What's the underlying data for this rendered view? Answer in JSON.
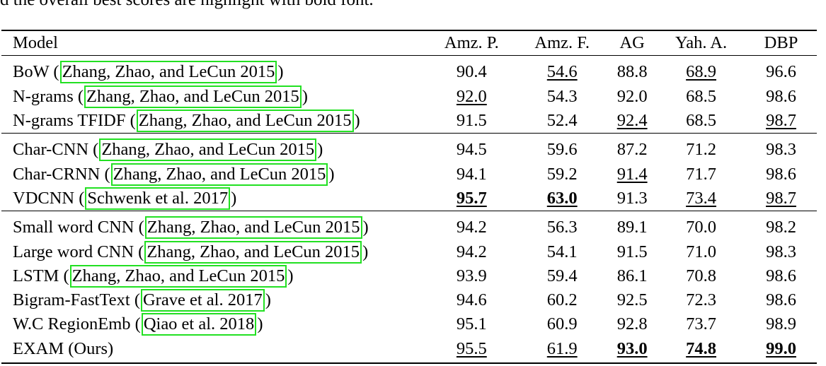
{
  "caption_fragment": "d the overall best scores are highlight with bold font.",
  "headers": [
    "Model",
    "Amz. P.",
    "Amz. F.",
    "AG",
    "Yah. A.",
    "DBP"
  ],
  "groups": [
    [
      {
        "model": "BoW",
        "cite": "Zhang, Zhao, and LeCun 2015",
        "scores": [
          {
            "v": "90.4",
            "u": false,
            "b": false
          },
          {
            "v": "54.6",
            "u": true,
            "b": false
          },
          {
            "v": "88.8",
            "u": false,
            "b": false
          },
          {
            "v": "68.9",
            "u": true,
            "b": false
          },
          {
            "v": "96.6",
            "u": false,
            "b": false
          }
        ]
      },
      {
        "model": "N-grams",
        "cite": "Zhang, Zhao, and LeCun 2015",
        "scores": [
          {
            "v": "92.0",
            "u": true,
            "b": false
          },
          {
            "v": "54.3",
            "u": false,
            "b": false
          },
          {
            "v": "92.0",
            "u": false,
            "b": false
          },
          {
            "v": "68.5",
            "u": false,
            "b": false
          },
          {
            "v": "98.6",
            "u": false,
            "b": false
          }
        ]
      },
      {
        "model": "N-grams TFIDF",
        "cite": "Zhang, Zhao, and LeCun 2015",
        "scores": [
          {
            "v": "91.5",
            "u": false,
            "b": false
          },
          {
            "v": "52.4",
            "u": false,
            "b": false
          },
          {
            "v": "92.4",
            "u": true,
            "b": false
          },
          {
            "v": "68.5",
            "u": false,
            "b": false
          },
          {
            "v": "98.7",
            "u": true,
            "b": false
          }
        ]
      }
    ],
    [
      {
        "model": "Char-CNN",
        "cite": "Zhang, Zhao, and LeCun 2015",
        "scores": [
          {
            "v": "94.5",
            "u": false,
            "b": false
          },
          {
            "v": "59.6",
            "u": false,
            "b": false
          },
          {
            "v": "87.2",
            "u": false,
            "b": false
          },
          {
            "v": "71.2",
            "u": false,
            "b": false
          },
          {
            "v": "98.3",
            "u": false,
            "b": false
          }
        ]
      },
      {
        "model": "Char-CRNN",
        "cite": "Zhang, Zhao, and LeCun 2015",
        "scores": [
          {
            "v": "94.1",
            "u": false,
            "b": false
          },
          {
            "v": "59.2",
            "u": false,
            "b": false
          },
          {
            "v": "91.4",
            "u": true,
            "b": false
          },
          {
            "v": "71.7",
            "u": false,
            "b": false
          },
          {
            "v": "98.6",
            "u": false,
            "b": false
          }
        ]
      },
      {
        "model": "VDCNN",
        "cite": "Schwenk et al. 2017",
        "scores": [
          {
            "v": "95.7",
            "u": true,
            "b": true
          },
          {
            "v": "63.0",
            "u": true,
            "b": true
          },
          {
            "v": "91.3",
            "u": false,
            "b": false
          },
          {
            "v": "73.4",
            "u": true,
            "b": false
          },
          {
            "v": "98.7",
            "u": true,
            "b": false
          }
        ]
      }
    ],
    [
      {
        "model": "Small word CNN",
        "cite": "Zhang, Zhao, and LeCun 2015",
        "scores": [
          {
            "v": "94.2",
            "u": false,
            "b": false
          },
          {
            "v": "56.3",
            "u": false,
            "b": false
          },
          {
            "v": "89.1",
            "u": false,
            "b": false
          },
          {
            "v": "70.0",
            "u": false,
            "b": false
          },
          {
            "v": "98.2",
            "u": false,
            "b": false
          }
        ]
      },
      {
        "model": "Large word CNN",
        "cite": "Zhang, Zhao, and LeCun 2015",
        "scores": [
          {
            "v": "94.2",
            "u": false,
            "b": false
          },
          {
            "v": "54.1",
            "u": false,
            "b": false
          },
          {
            "v": "91.5",
            "u": false,
            "b": false
          },
          {
            "v": "71.0",
            "u": false,
            "b": false
          },
          {
            "v": "98.3",
            "u": false,
            "b": false
          }
        ]
      },
      {
        "model": "LSTM",
        "cite": "Zhang, Zhao, and LeCun 2015",
        "scores": [
          {
            "v": "93.9",
            "u": false,
            "b": false
          },
          {
            "v": "59.4",
            "u": false,
            "b": false
          },
          {
            "v": "86.1",
            "u": false,
            "b": false
          },
          {
            "v": "70.8",
            "u": false,
            "b": false
          },
          {
            "v": "98.6",
            "u": false,
            "b": false
          }
        ]
      },
      {
        "model": "Bigram-FastText",
        "cite": "Grave et al. 2017",
        "scores": [
          {
            "v": "94.6",
            "u": false,
            "b": false
          },
          {
            "v": "60.2",
            "u": false,
            "b": false
          },
          {
            "v": "92.5",
            "u": false,
            "b": false
          },
          {
            "v": "72.3",
            "u": false,
            "b": false
          },
          {
            "v": "98.6",
            "u": false,
            "b": false
          }
        ]
      },
      {
        "model": "W.C RegionEmb",
        "cite": "Qiao et al. 2018",
        "scores": [
          {
            "v": "95.1",
            "u": false,
            "b": false
          },
          {
            "v": "60.9",
            "u": false,
            "b": false
          },
          {
            "v": "92.8",
            "u": false,
            "b": false
          },
          {
            "v": "73.7",
            "u": false,
            "b": false
          },
          {
            "v": "98.9",
            "u": false,
            "b": false
          }
        ]
      },
      {
        "model": "EXAM (Ours)",
        "cite": "",
        "scores": [
          {
            "v": "95.5",
            "u": true,
            "b": false
          },
          {
            "v": "61.9",
            "u": true,
            "b": false
          },
          {
            "v": "93.0",
            "u": true,
            "b": true
          },
          {
            "v": "74.8",
            "u": true,
            "b": true
          },
          {
            "v": "99.0",
            "u": true,
            "b": true
          }
        ]
      }
    ]
  ],
  "colors": {
    "citation_box": "#22e022",
    "text": "#000000",
    "background": "#ffffff"
  }
}
